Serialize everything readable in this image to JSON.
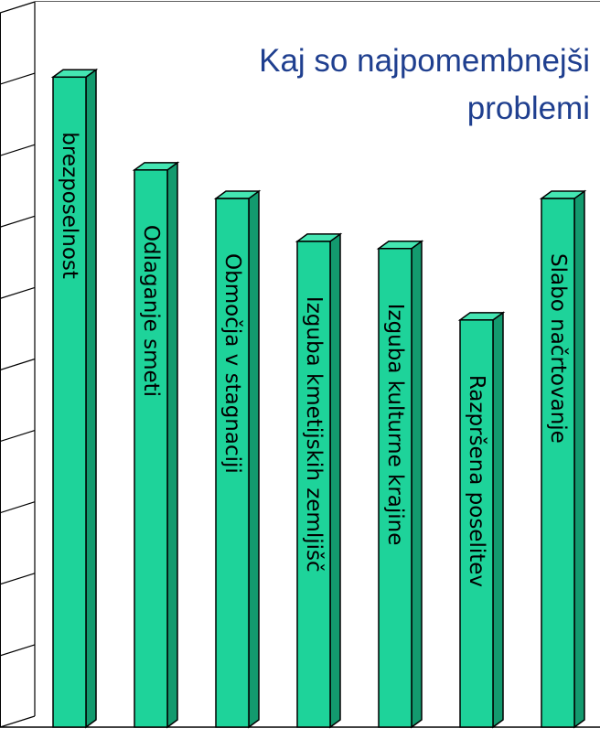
{
  "chart_data": {
    "type": "bar",
    "title_lines": [
      "Kaj so najpomembnejši",
      "problemi"
    ],
    "categories": [
      "brezposelnost",
      "Odlaganje smeti",
      "Območja v stagnaciji",
      "Izguba kmetijskih zemljišč",
      "Izguba kulturne krajine",
      "Razpršena poselitev",
      "Slabo načrtovanje"
    ],
    "values": [
      9.1,
      7.8,
      7.4,
      6.8,
      6.7,
      5.7,
      7.4
    ],
    "ylim": [
      0,
      10
    ],
    "grid": true,
    "bar_color": "#1ed39a",
    "bar_side_color": "#139a6e",
    "bar_top_color": "#44e6b2",
    "title_color": "#1f3f8f"
  }
}
